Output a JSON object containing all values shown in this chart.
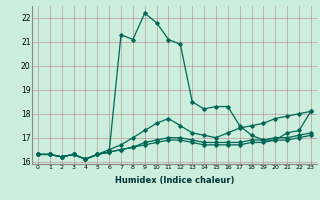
{
  "xlabel": "Humidex (Indice chaleur)",
  "background_color": "#cceedd",
  "grid_color": "#bb9999",
  "line_color": "#006655",
  "series": [
    [
      16.3,
      16.3,
      16.2,
      16.3,
      16.1,
      16.3,
      16.4,
      21.3,
      21.1,
      22.2,
      21.8,
      21.1,
      20.9,
      18.5,
      18.2,
      18.3,
      18.3,
      17.5,
      17.1,
      16.9,
      16.9,
      17.2,
      17.3,
      18.1
    ],
    [
      16.3,
      16.3,
      16.2,
      16.3,
      16.1,
      16.3,
      16.5,
      16.7,
      17.0,
      17.3,
      17.6,
      17.8,
      17.5,
      17.2,
      17.1,
      17.0,
      17.2,
      17.4,
      17.5,
      17.6,
      17.8,
      17.9,
      18.0,
      18.1
    ],
    [
      16.3,
      16.3,
      16.2,
      16.3,
      16.1,
      16.3,
      16.4,
      16.5,
      16.6,
      16.8,
      16.9,
      17.0,
      17.0,
      16.9,
      16.8,
      16.8,
      16.8,
      16.8,
      16.9,
      16.9,
      17.0,
      17.0,
      17.1,
      17.2
    ],
    [
      16.3,
      16.3,
      16.2,
      16.3,
      16.1,
      16.3,
      16.4,
      16.5,
      16.6,
      16.7,
      16.8,
      16.9,
      16.9,
      16.8,
      16.7,
      16.7,
      16.7,
      16.7,
      16.8,
      16.8,
      16.9,
      16.9,
      17.0,
      17.1
    ]
  ],
  "x_values": [
    0,
    1,
    2,
    3,
    4,
    5,
    6,
    7,
    8,
    9,
    10,
    11,
    12,
    13,
    14,
    15,
    16,
    17,
    18,
    19,
    20,
    21,
    22,
    23
  ],
  "ylim": [
    15.9,
    22.5
  ],
  "xlim": [
    -0.5,
    23.5
  ],
  "yticks": [
    16,
    17,
    18,
    19,
    20,
    21,
    22
  ],
  "xticks": [
    0,
    1,
    2,
    3,
    4,
    5,
    6,
    7,
    8,
    9,
    10,
    11,
    12,
    13,
    14,
    15,
    16,
    17,
    18,
    19,
    20,
    21,
    22,
    23
  ]
}
